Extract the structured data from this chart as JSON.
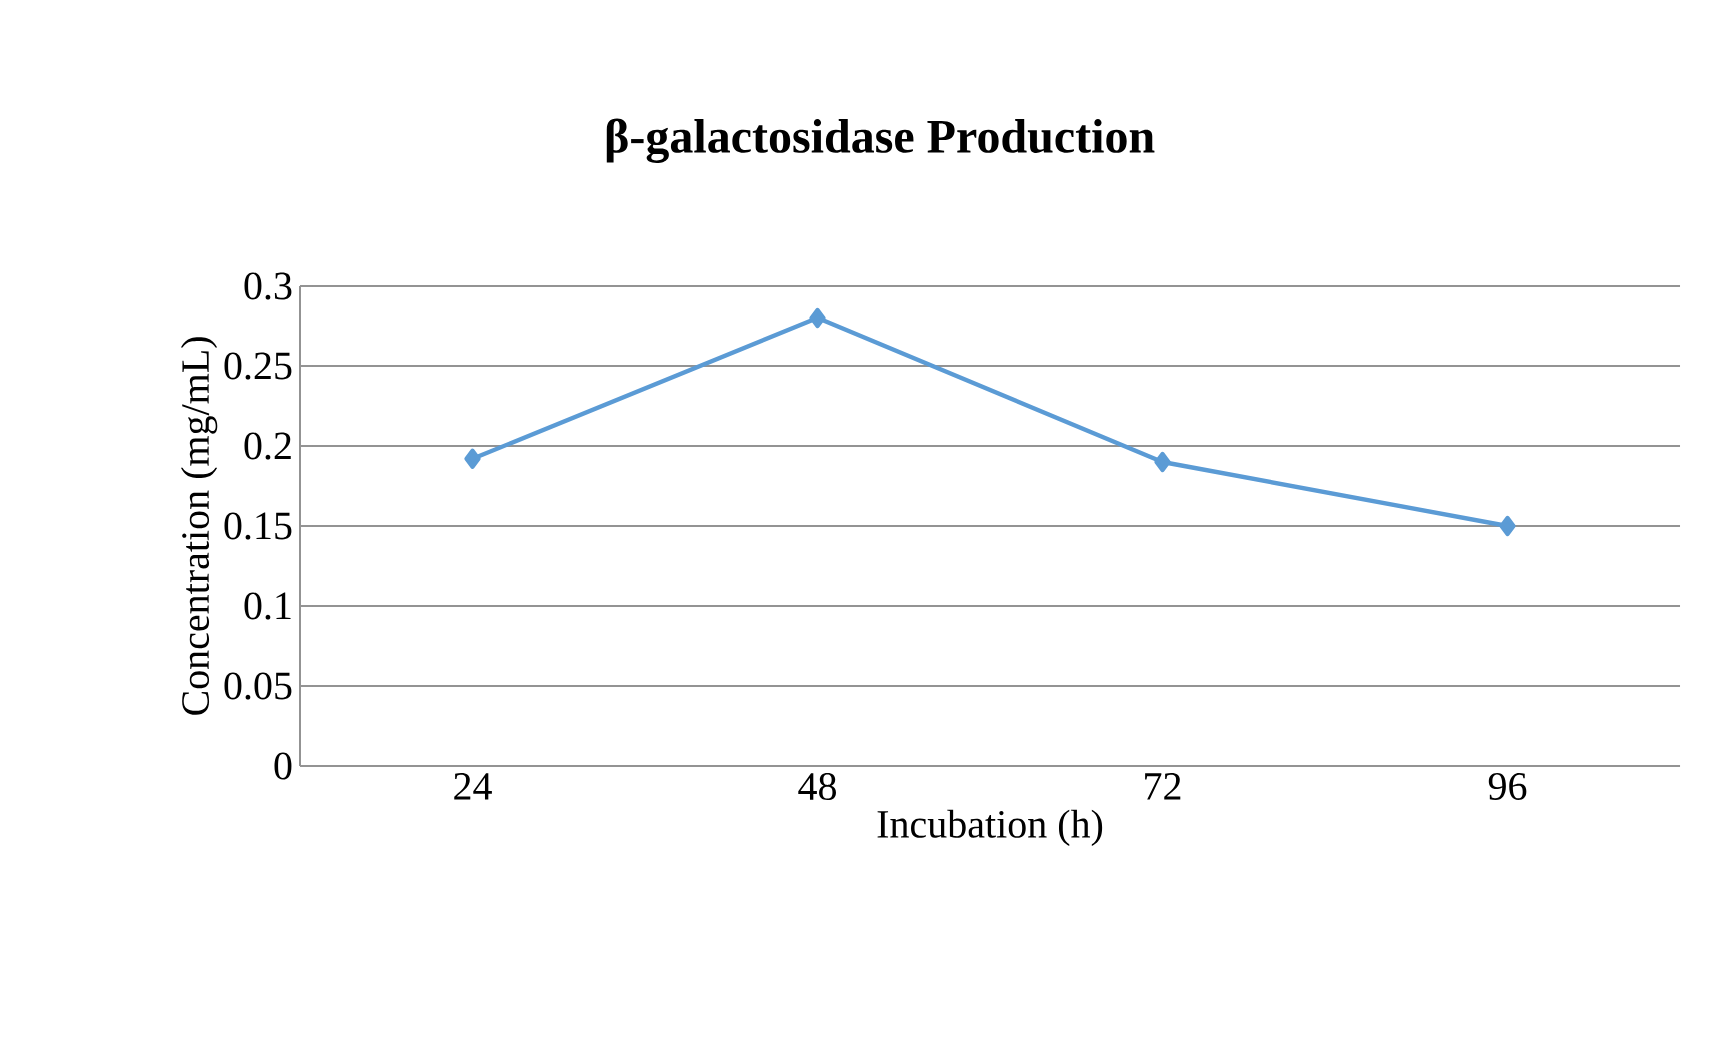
{
  "chart_data": {
    "type": "line",
    "title": "β-galactosidase Production",
    "xlabel": "Incubation (h)",
    "ylabel": "Concentration (mg/mL)",
    "categories": [
      "24",
      "48",
      "72",
      "96"
    ],
    "series": [
      {
        "color": "#5b9bd5",
        "values": [
          0.192,
          0.28,
          0.19,
          0.15
        ]
      }
    ],
    "ylim": [
      0,
      0.3
    ],
    "yticks": [
      0,
      0.05,
      0.1,
      0.15,
      0.2,
      0.25,
      0.3
    ],
    "grid": "y",
    "legend": false,
    "marker": "diamond",
    "line_style": "solid"
  }
}
